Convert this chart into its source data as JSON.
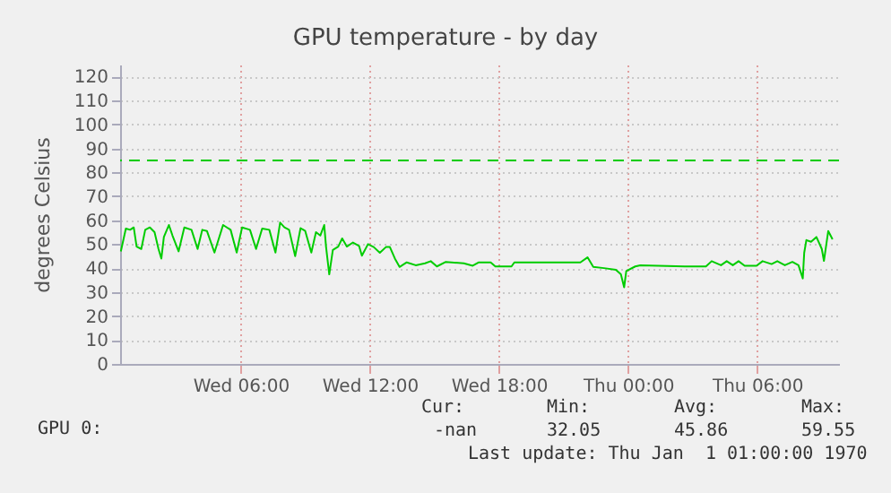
{
  "chart_data": {
    "type": "line",
    "title": "GPU temperature - by day",
    "ylabel": "degrees Celsius",
    "xlim": [
      "--01-03T00:24",
      "--01-04T09:48"
    ],
    "xticks": [
      {
        "value": "--01-03T06:00",
        "label": "Wed 06:00"
      },
      {
        "value": "--01-03T12:00",
        "label": "Wed 12:00"
      },
      {
        "value": "--01-03T18:00",
        "label": "Wed 18:00"
      },
      {
        "value": "--01-04T00:00",
        "label": "Thu 00:00"
      },
      {
        "value": "--01-04T06:00",
        "label": "Thu 06:00"
      }
    ],
    "ylim": [
      0,
      125
    ],
    "yticks": [
      0,
      10,
      20,
      30,
      40,
      50,
      60,
      70,
      80,
      90,
      100,
      110,
      120
    ],
    "grid": true,
    "legend": "bottom left",
    "ref_lines": [
      {
        "axis": "y",
        "value": 85,
        "color": "#00cc00",
        "line_style": "dashed"
      }
    ],
    "annotations": [
      "Cur:",
      "Min:",
      "Avg:",
      "Max:",
      "-nan",
      "32.05",
      "45.86",
      "59.55",
      "Last update: Thu Jan  1 01:00:00 1970"
    ],
    "series": [
      {
        "name": "GPU 0:",
        "color": "#00cc00",
        "x": [
          "--01-03T00:26",
          "--01-03T00:40",
          "--01-03T00:52",
          "--01-03T01:02",
          "--01-03T01:10",
          "--01-03T01:23",
          "--01-03T01:34",
          "--01-03T01:47",
          "--01-03T02:00",
          "--01-03T02:11",
          "--01-03T02:19",
          "--01-03T02:26",
          "--01-03T02:40",
          "--01-03T02:50",
          "--01-03T03:07",
          "--01-03T03:23",
          "--01-03T03:43",
          "--01-03T04:00",
          "--01-03T04:13",
          "--01-03T04:26",
          "--01-03T04:47",
          "--01-03T05:11",
          "--01-03T05:32",
          "--01-03T05:49",
          "--01-03T06:04",
          "--01-03T06:26",
          "--01-03T06:43",
          "--01-03T07:00",
          "--01-03T07:20",
          "--01-03T07:37",
          "--01-03T07:50",
          "--01-03T08:02",
          "--01-03T08:15",
          "--01-03T08:32",
          "--01-03T08:47",
          "--01-03T09:00",
          "--01-03T09:17",
          "--01-03T09:30",
          "--01-03T09:42",
          "--01-03T09:53",
          "--01-03T09:58",
          "--01-03T10:07",
          "--01-03T10:17",
          "--01-03T10:32",
          "--01-03T10:43",
          "--01-03T10:56",
          "--01-03T11:13",
          "--01-03T11:30",
          "--01-03T11:38",
          "--01-03T11:55",
          "--01-03T12:11",
          "--01-03T12:28",
          "--01-03T12:45",
          "--01-03T12:56",
          "--01-03T13:10",
          "--01-03T13:23",
          "--01-03T13:43",
          "--01-03T14:08",
          "--01-03T14:34",
          "--01-03T14:50",
          "--01-03T15:07",
          "--01-03T15:32",
          "--01-03T16:22",
          "--01-03T16:47",
          "--01-03T17:04",
          "--01-03T17:37",
          "--01-03T17:50",
          "--01-03T18:35",
          "--01-03T18:43",
          "--01-03T21:47",
          "--01-03T22:07",
          "--01-03T22:23",
          "--01-03T22:53",
          "--01-03T23:26",
          "--01-03T23:40",
          "--01-03T23:49",
          "--01-03T23:55",
          "--01-04T00:20",
          "--01-04T00:34",
          "--01-04T02:38",
          "--01-04T03:37",
          "--01-04T03:53",
          "--01-04T04:19",
          "--01-04T04:35",
          "--01-04T04:52",
          "--01-04T05:08",
          "--01-04T05:25",
          "--01-04T05:58",
          "--01-04T06:15",
          "--01-04T06:40",
          "--01-04T06:56",
          "--01-04T07:17",
          "--01-04T07:38",
          "--01-04T07:55",
          "--01-04T08:07",
          "--01-04T08:11",
          "--01-04T08:17",
          "--01-04T08:30",
          "--01-04T08:45",
          "--01-04T09:00",
          "--01-04T09:06",
          "--01-04T09:18",
          "--01-04T09:30"
        ],
        "values": [
          47,
          56.5,
          56,
          57,
          49,
          48,
          56,
          57,
          55,
          48,
          44,
          53,
          58,
          53.6,
          47,
          57,
          56,
          48,
          56,
          55.5,
          46.5,
          58,
          56,
          46.5,
          57,
          56,
          48,
          56.5,
          56,
          46.5,
          59,
          57,
          56,
          45,
          56.7,
          55.5,
          46.5,
          55,
          53.6,
          58,
          49,
          37.4,
          47.6,
          49,
          52.4,
          49,
          50.7,
          49.3,
          45.2,
          50,
          48.8,
          46.4,
          48.8,
          48.8,
          44,
          40.5,
          42.4,
          41.2,
          42,
          42.9,
          40.7,
          42.6,
          42,
          41,
          42.4,
          42.4,
          40.7,
          40.7,
          42.4,
          42.4,
          44.5,
          40.5,
          40,
          39.3,
          37.4,
          32,
          38.8,
          40.7,
          41.2,
          40.7,
          40.7,
          42.9,
          41.2,
          42.9,
          41.2,
          42.9,
          41,
          41,
          42.9,
          41.7,
          42.9,
          41.2,
          42.6,
          41.2,
          35.7,
          46.4,
          51.7,
          51,
          53,
          48,
          43,
          55.5,
          52
        ]
      }
    ]
  }
}
